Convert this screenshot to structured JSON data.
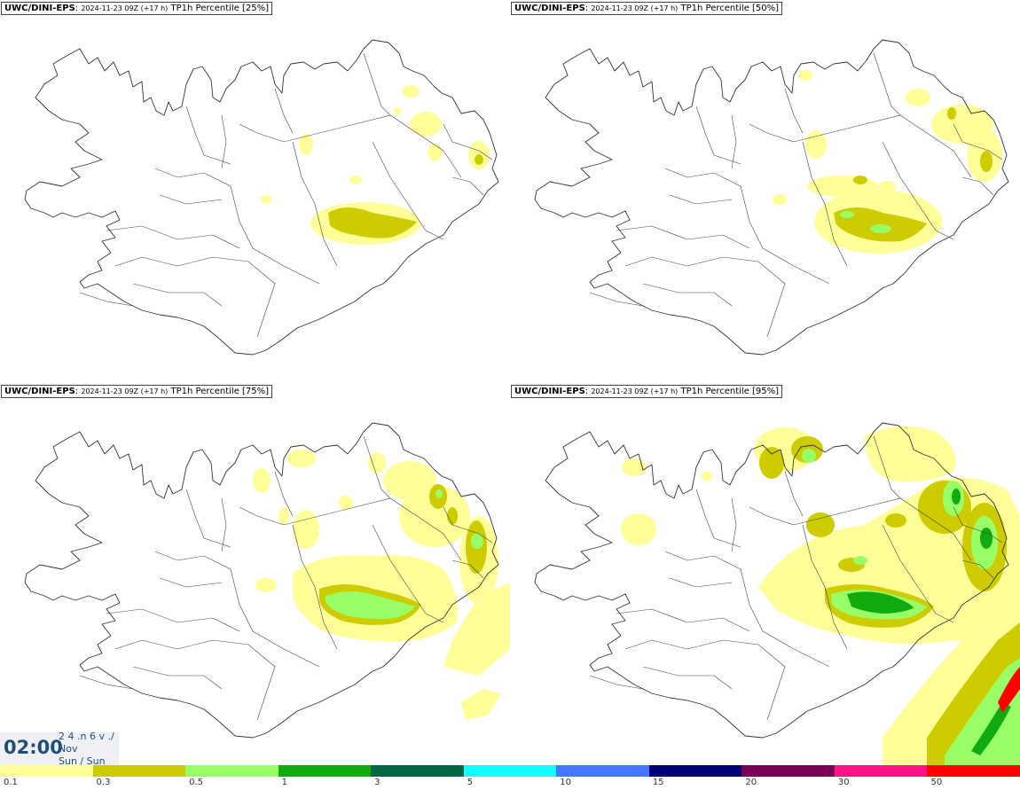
{
  "panels": [
    {
      "model": "UWC/DINI-EPS",
      "run": "2024-11-23 09Z (+17 h)",
      "product": "TP1h Percentile [25%]"
    },
    {
      "model": "UWC/DINI-EPS",
      "run": "2024-11-23 09Z (+17 h)",
      "product": "TP1h Percentile [50%]"
    },
    {
      "model": "UWC/DINI-EPS",
      "run": "2024-11-23 09Z (+17 h)",
      "product": "TP1h Percentile [75%]"
    },
    {
      "model": "UWC/DINI-EPS",
      "run": "2024-11-23 09Z (+17 h)",
      "product": "TP1h Percentile [95%]"
    }
  ],
  "time": {
    "clock": "02:00",
    "line1": "2 4 .n 6 v ./",
    "line2": "Nov",
    "line3": "Sun / Sun"
  },
  "legend": {
    "colors": [
      "#ffff99",
      "#cccc00",
      "#99ff66",
      "#11aa11",
      "#006644",
      "#11ffff",
      "#4477ff",
      "#000077",
      "#770055",
      "#ff1188",
      "#ff0000"
    ],
    "labels": [
      "0.1",
      "0.3",
      "0.5",
      "1",
      "3",
      "5",
      "10",
      "15",
      "20",
      "30",
      "50"
    ]
  },
  "colors": {
    "coast": "#333333",
    "light_yellow": "#ffff99",
    "olive": "#cccc00",
    "light_green": "#99ff66",
    "green": "#11aa11"
  }
}
